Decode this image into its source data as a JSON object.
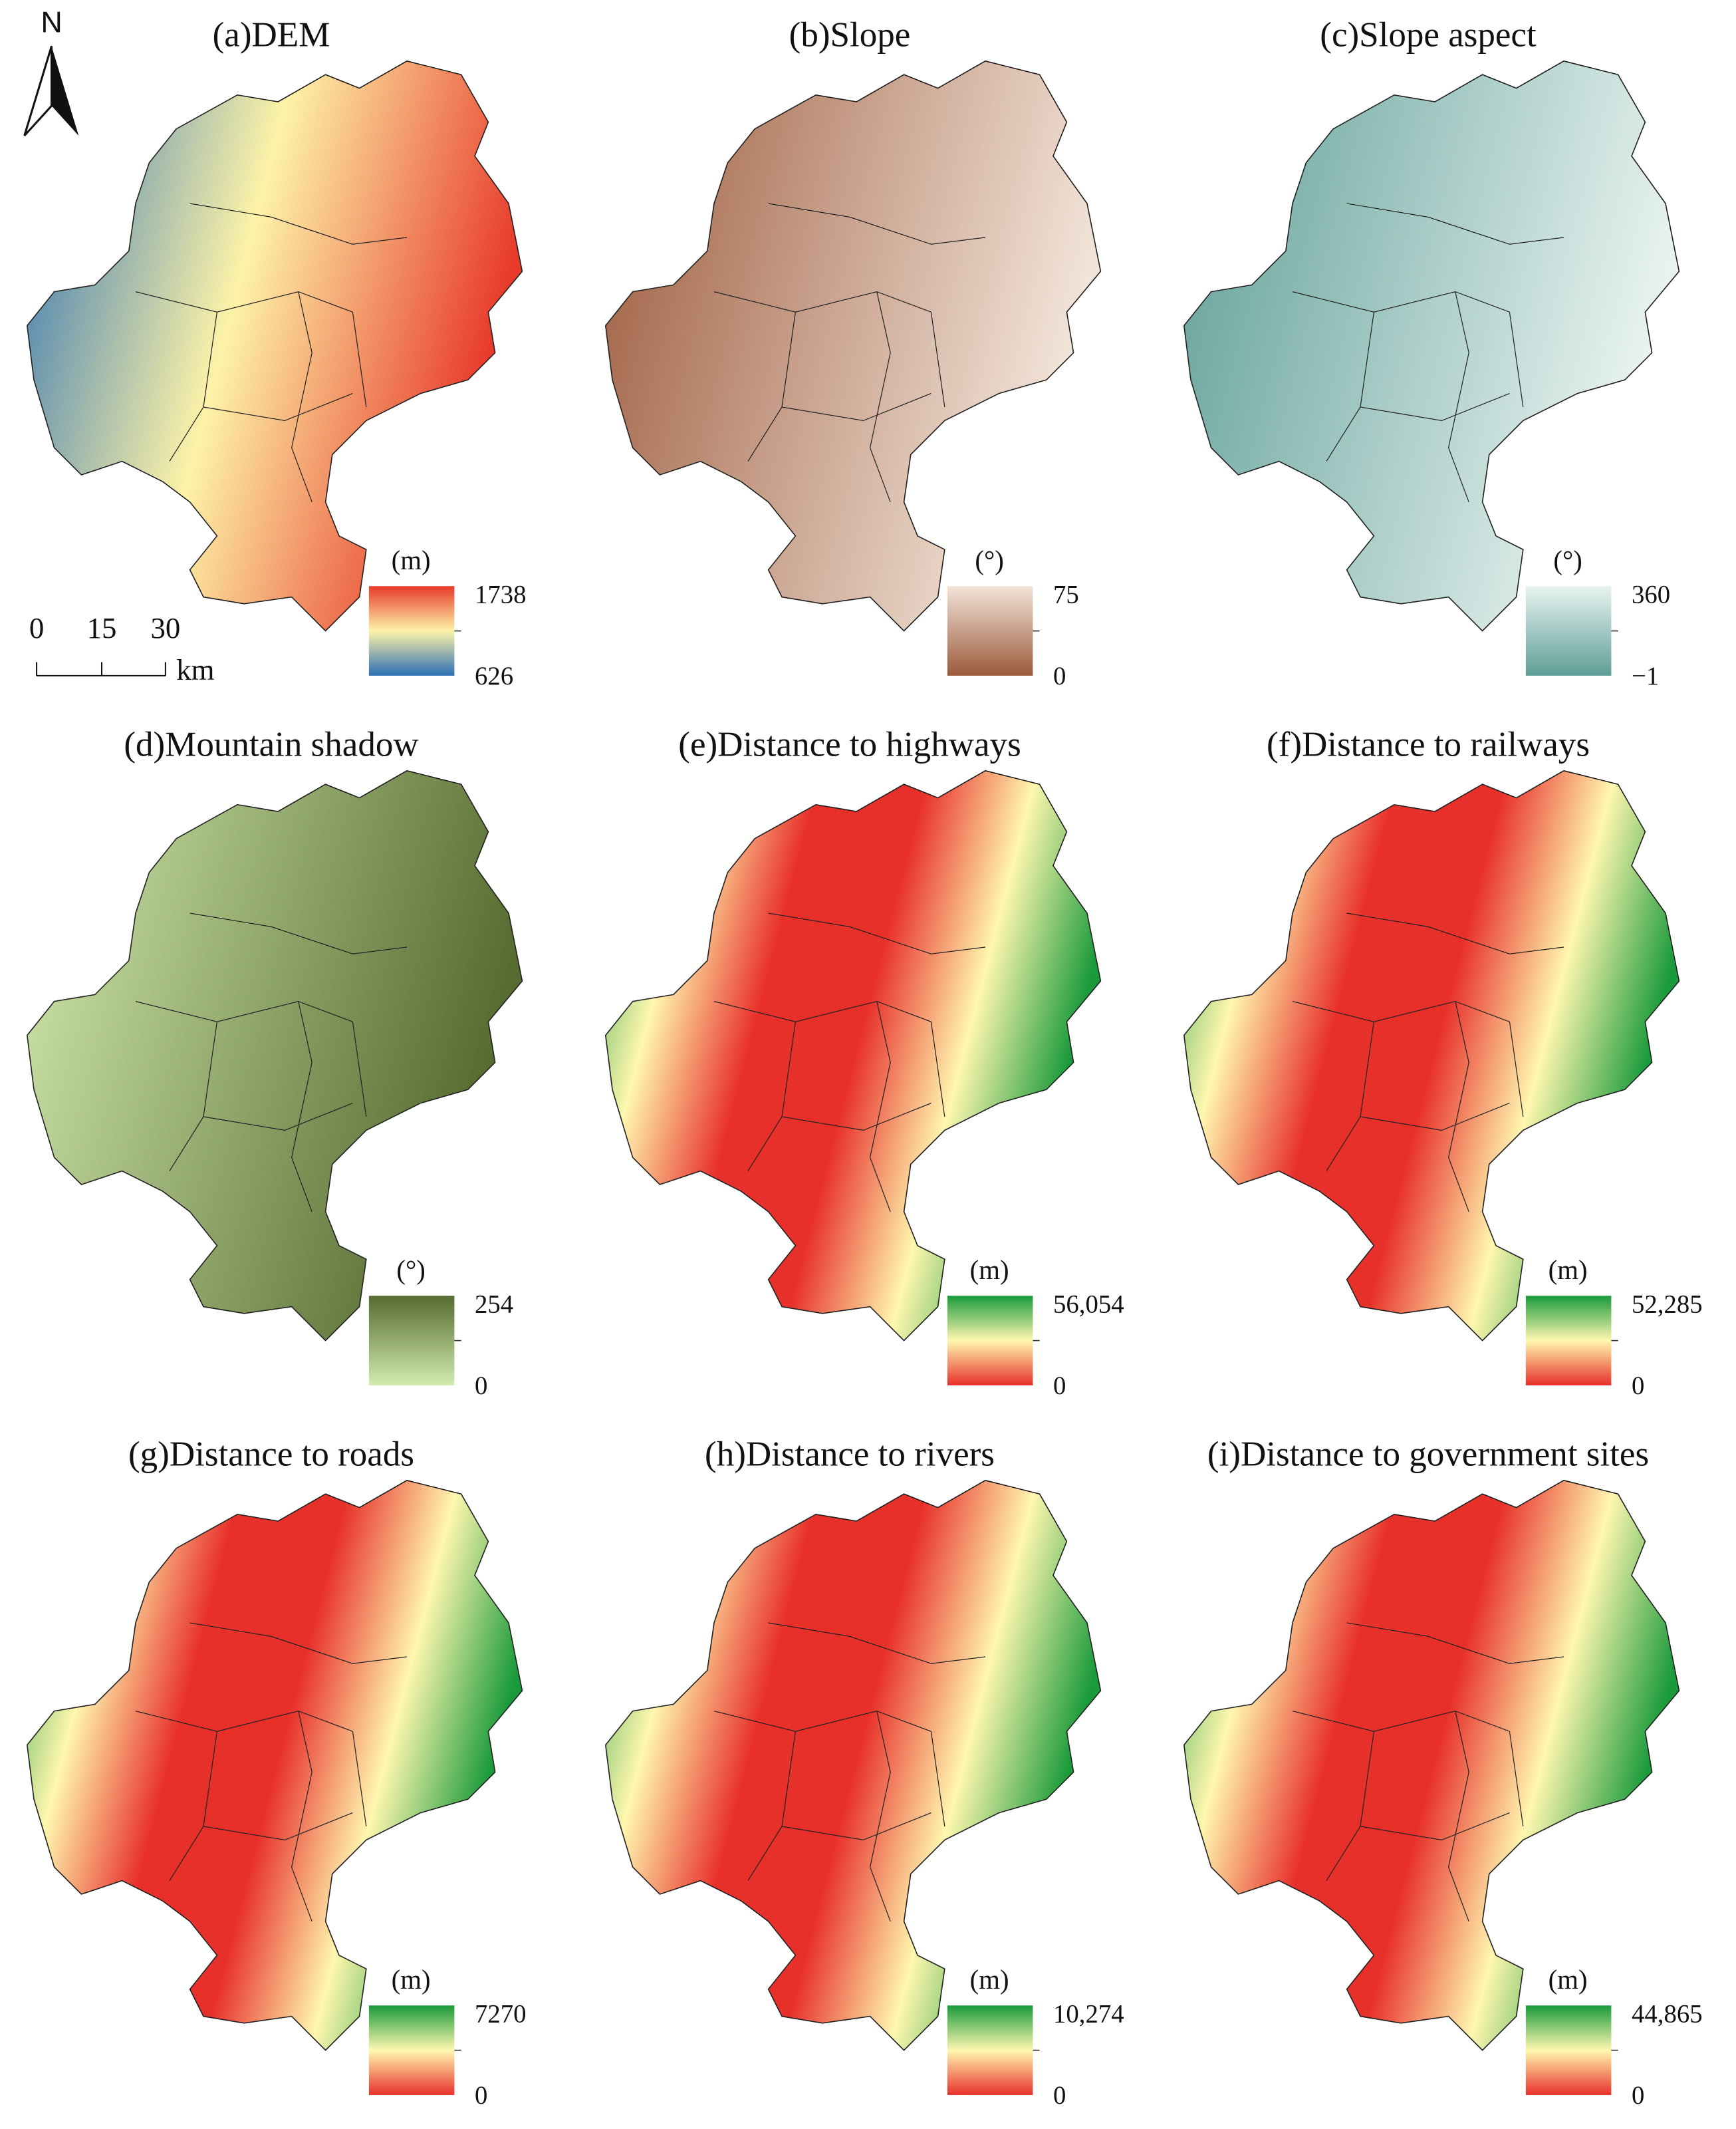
{
  "north": "N",
  "scale_bar": {
    "labels": [
      "0",
      "15",
      "30"
    ],
    "unit": "km"
  },
  "panels": [
    {
      "title": "(a)DEM",
      "unit": "(m)",
      "max": "1738",
      "min": "626",
      "colors": [
        "#e83a2a",
        "#fdf3a8",
        "#2c6fb3"
      ]
    },
    {
      "title": "(b)Slope",
      "unit": "(°)",
      "max": "75",
      "min": "0",
      "colors": [
        "#f2e4d8",
        "#9c5a3c"
      ]
    },
    {
      "title": "(c)Slope aspect",
      "unit": "(°)",
      "max": "360",
      "min": "−1",
      "colors": [
        "#e8f3f0",
        "#5e9e96"
      ]
    },
    {
      "title": "(d)Mountain shadow",
      "unit": "(°)",
      "max": "254",
      "min": "0",
      "colors": [
        "#556b2f",
        "#d4ebb0"
      ]
    },
    {
      "title": "(e)Distance to highways",
      "unit": "(m)",
      "max": "56,054",
      "min": "0",
      "colors": [
        "#1a9a3a",
        "#fff7b0",
        "#e8302a"
      ]
    },
    {
      "title": "(f)Distance to railways",
      "unit": "(m)",
      "max": "52,285",
      "min": "0",
      "colors": [
        "#1a9a3a",
        "#fff7b0",
        "#e8302a"
      ]
    },
    {
      "title": "(g)Distance to roads",
      "unit": "(m)",
      "max": "7270",
      "min": "0",
      "colors": [
        "#1a9a3a",
        "#fff7b0",
        "#e8302a"
      ]
    },
    {
      "title": "(h)Distance to rivers",
      "unit": "(m)",
      "max": "10,274",
      "min": "0",
      "colors": [
        "#1a9a3a",
        "#fff7b0",
        "#e8302a"
      ]
    },
    {
      "title": "(i)Distance to government sites",
      "unit": "(m)",
      "max": "44,865",
      "min": "0",
      "colors": [
        "#1a9a3a",
        "#fff7b0",
        "#e8302a"
      ]
    }
  ]
}
